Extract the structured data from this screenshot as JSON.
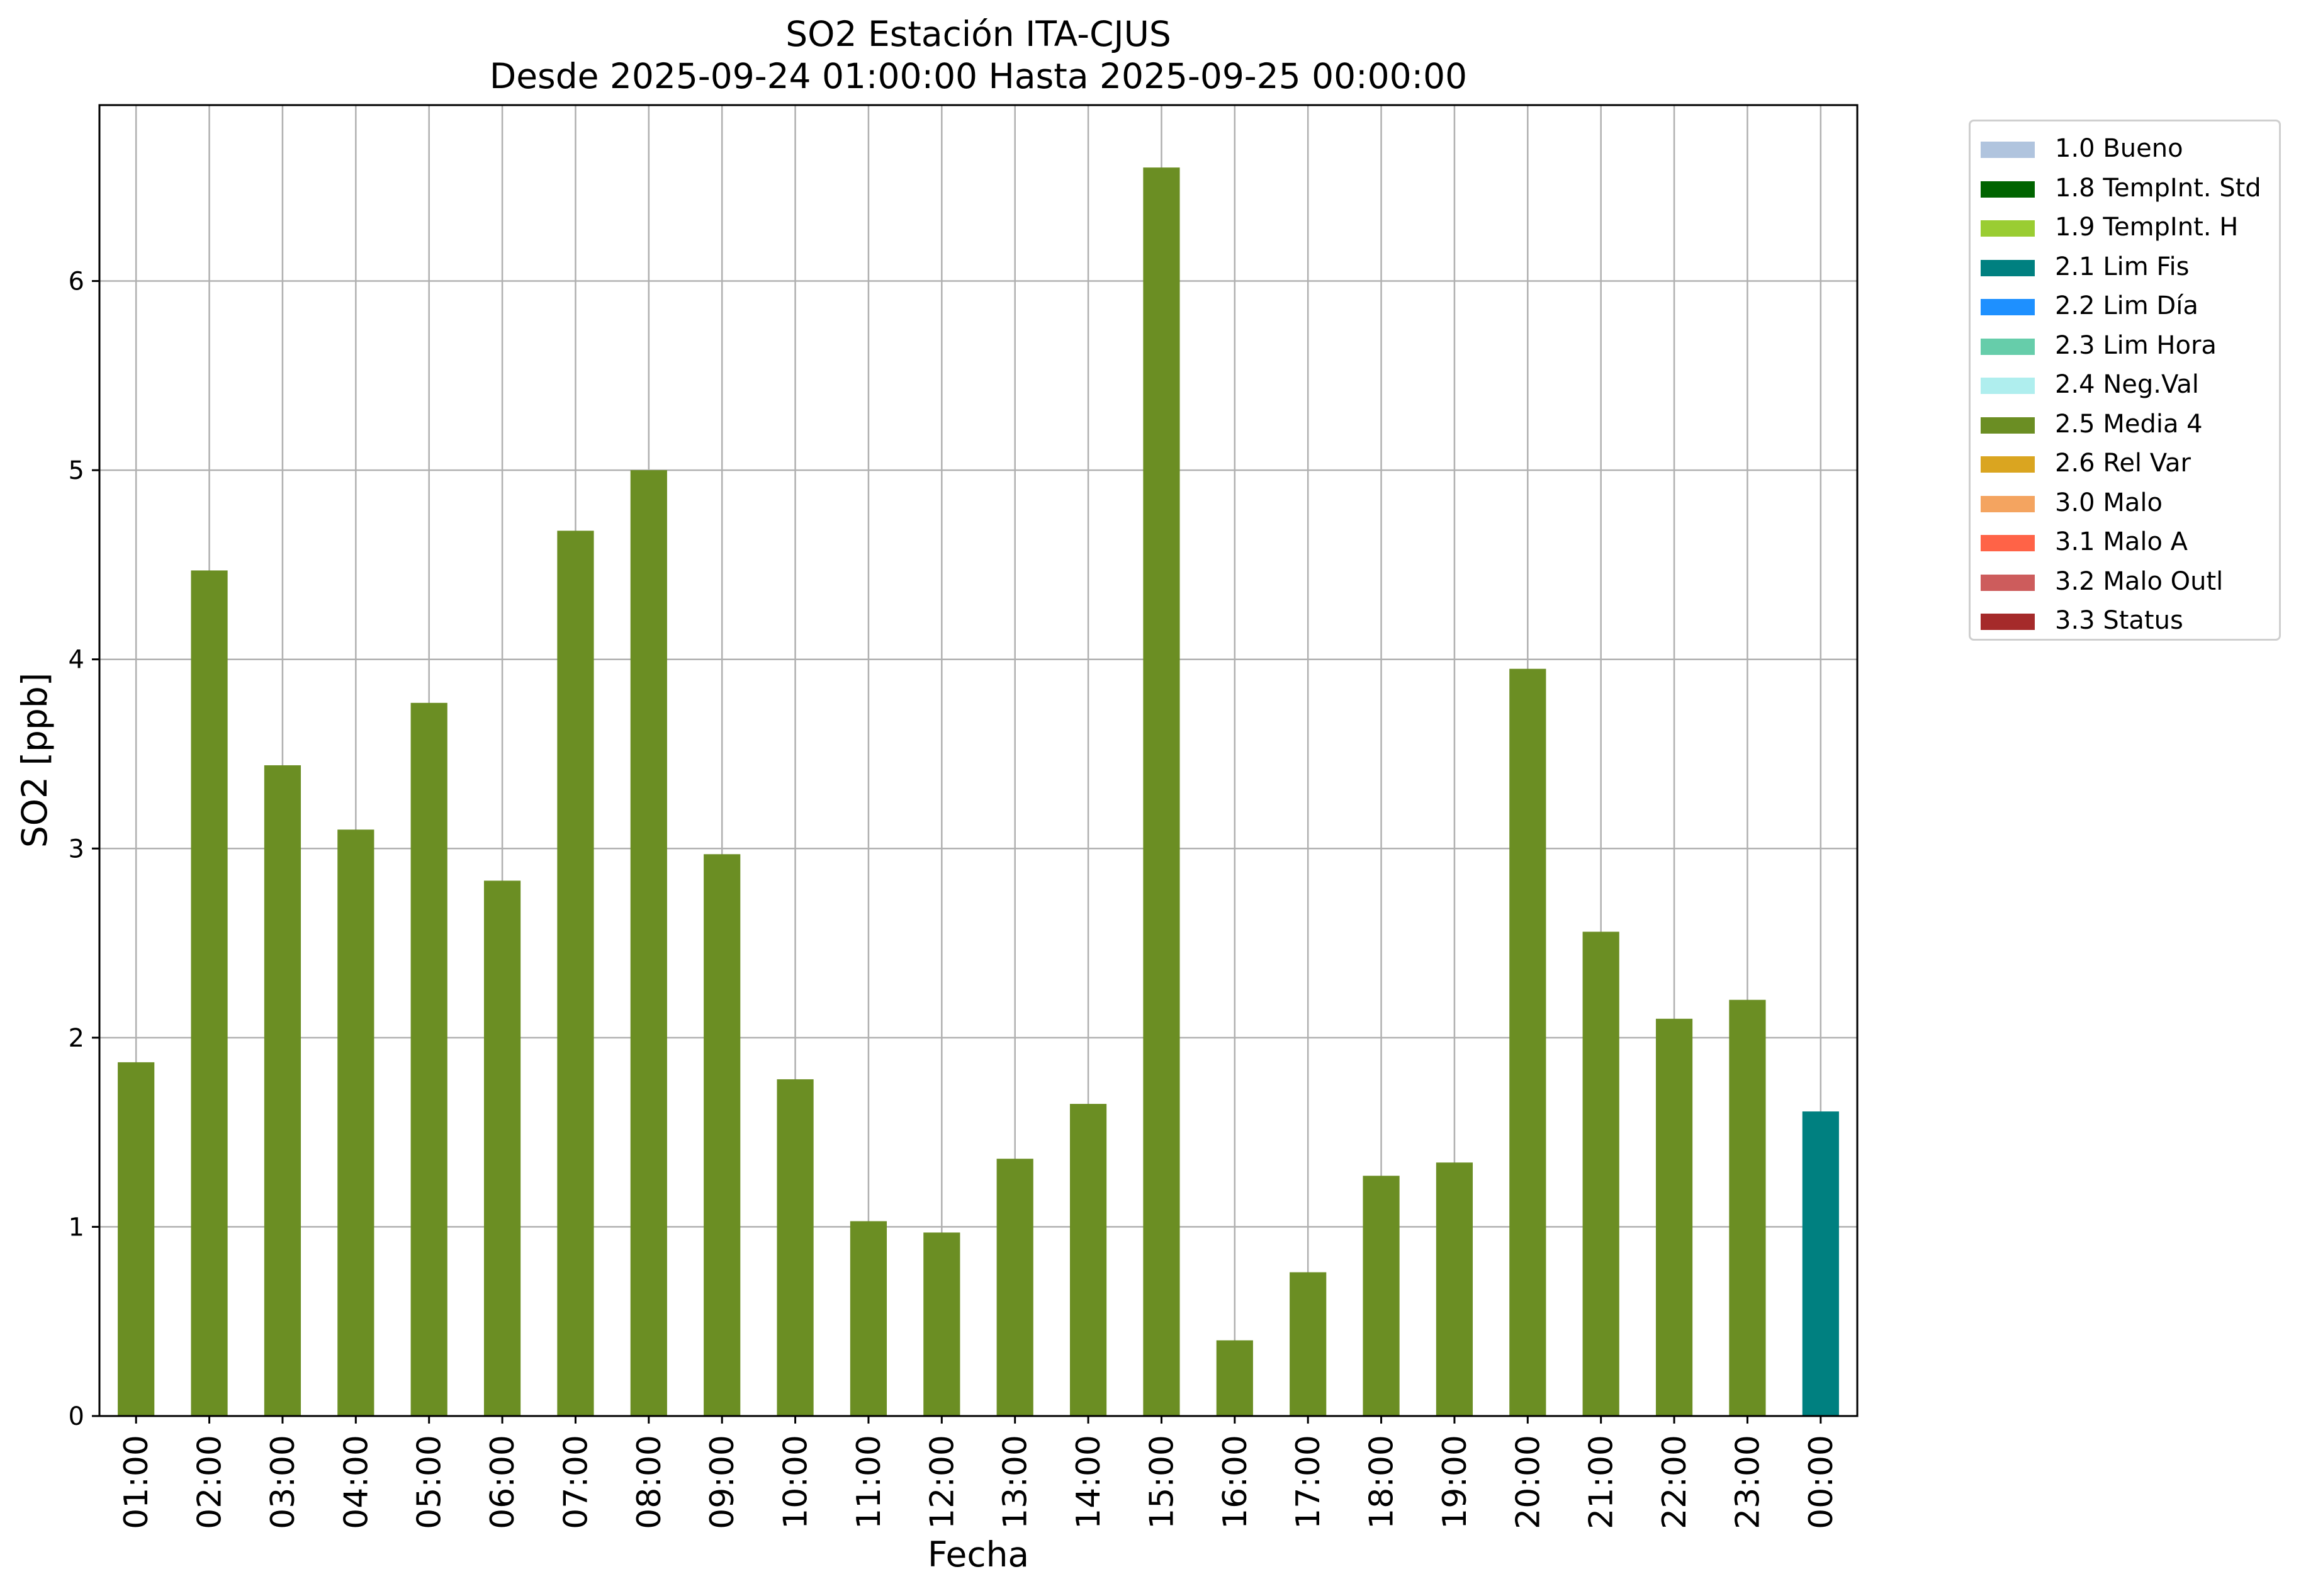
{
  "chart_data": {
    "type": "bar",
    "title": "SO2 Estación ITA-CJUS",
    "subtitle": "Desde 2025-09-24 01:00:00 Hasta 2025-09-25 00:00:00",
    "xlabel": "Fecha",
    "ylabel": "SO2 [ppb]",
    "ylim": [
      0,
      6.93
    ],
    "yticks": [
      0,
      1,
      2,
      3,
      4,
      5,
      6
    ],
    "grid": true,
    "legend_position": "outside-top-right",
    "categories": [
      "01:00",
      "02:00",
      "03:00",
      "04:00",
      "05:00",
      "06:00",
      "07:00",
      "08:00",
      "09:00",
      "10:00",
      "11:00",
      "12:00",
      "13:00",
      "14:00",
      "15:00",
      "16:00",
      "17:00",
      "18:00",
      "19:00",
      "20:00",
      "21:00",
      "22:00",
      "23:00",
      "00:00"
    ],
    "values": [
      1.87,
      4.47,
      3.44,
      3.1,
      3.77,
      2.83,
      4.68,
      5.0,
      2.97,
      1.78,
      1.03,
      0.97,
      1.36,
      1.65,
      6.6,
      0.4,
      0.76,
      1.27,
      1.34,
      3.95,
      2.56,
      2.1,
      2.2,
      1.61
    ],
    "flags": [
      "2.5 Media 4",
      "2.5 Media 4",
      "2.5 Media 4",
      "2.5 Media 4",
      "2.5 Media 4",
      "2.5 Media 4",
      "2.5 Media 4",
      "2.5 Media 4",
      "2.5 Media 4",
      "2.5 Media 4",
      "2.5 Media 4",
      "2.5 Media 4",
      "2.5 Media 4",
      "2.5 Media 4",
      "2.5 Media 4",
      "2.5 Media 4",
      "2.5 Media 4",
      "2.5 Media 4",
      "2.5 Media 4",
      "2.5 Media 4",
      "2.5 Media 4",
      "2.5 Media 4",
      "2.5 Media 4",
      "2.1 Lim Fis"
    ],
    "legend": [
      {
        "label": "1.0 Bueno",
        "color": "#b0c4de"
      },
      {
        "label": "1.8 TempInt. Std",
        "color": "#006400"
      },
      {
        "label": "1.9 TempInt. H",
        "color": "#9acd32"
      },
      {
        "label": "2.1 Lim Fis",
        "color": "#008080"
      },
      {
        "label": "2.2 Lim Día",
        "color": "#1e90ff"
      },
      {
        "label": "2.3 Lim Hora",
        "color": "#66cdaa"
      },
      {
        "label": "2.4 Neg.Val",
        "color": "#afeeee"
      },
      {
        "label": "2.5 Media 4",
        "color": "#6b8e23"
      },
      {
        "label": "2.6 Rel Var",
        "color": "#daa520"
      },
      {
        "label": "3.0 Malo",
        "color": "#f4a460"
      },
      {
        "label": "3.1 Malo A",
        "color": "#ff6347"
      },
      {
        "label": "3.2 Malo Outl",
        "color": "#cd5c5c"
      },
      {
        "label": "3.3 Status",
        "color": "#a52a2a"
      }
    ]
  }
}
